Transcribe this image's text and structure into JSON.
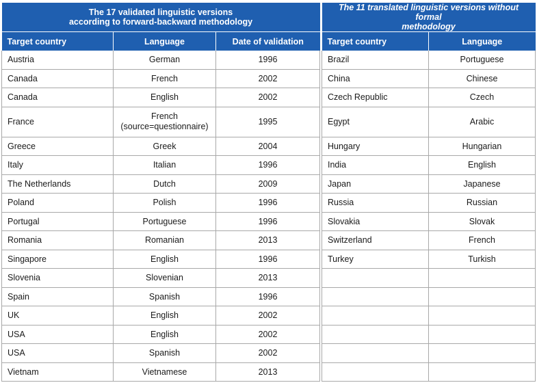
{
  "left_table": {
    "title_line1": "The 17 validated linguistic versions",
    "title_line2": "according to forward-backward methodology",
    "headers": [
      "Target country",
      "Language",
      "Date of validation"
    ],
    "rows": [
      {
        "country": "Austria",
        "language": "German",
        "date": "1996"
      },
      {
        "country": "Canada",
        "language": "French",
        "date": "2002"
      },
      {
        "country": "Canada",
        "language": "English",
        "date": "2002"
      },
      {
        "country": "France",
        "language": "French",
        "language_note": "(source=questionnaire)",
        "date": "1995"
      },
      {
        "country": "Greece",
        "language": "Greek",
        "date": "2004"
      },
      {
        "country": "Italy",
        "language": "Italian",
        "date": "1996"
      },
      {
        "country": "The Netherlands",
        "language": "Dutch",
        "date": "2009"
      },
      {
        "country": "Poland",
        "language": "Polish",
        "date": "1996"
      },
      {
        "country": "Portugal",
        "language": "Portuguese",
        "date": "1996"
      },
      {
        "country": "Romania",
        "language": "Romanian",
        "date": "2013"
      },
      {
        "country": "Singapore",
        "language": "English",
        "date": "1996"
      },
      {
        "country": "Slovenia",
        "language": "Slovenian",
        "date": "2013"
      },
      {
        "country": "Spain",
        "language": "Spanish",
        "date": "1996"
      },
      {
        "country": "UK",
        "language": "English",
        "date": "2002"
      },
      {
        "country": "USA",
        "language": "English",
        "date": "2002"
      },
      {
        "country": "USA",
        "language": "Spanish",
        "date": "2002"
      },
      {
        "country": "Vietnam",
        "language": "Vietnamese",
        "date": "2013"
      }
    ]
  },
  "right_table": {
    "title_line1": "The 11 translated linguistic versions without formal",
    "title_line2": "methodology",
    "headers": [
      "Target country",
      "Language"
    ],
    "rows": [
      {
        "country": "Brazil",
        "language": "Portuguese"
      },
      {
        "country": "China",
        "language": "Chinese"
      },
      {
        "country": "Czech Republic",
        "language": "Czech"
      },
      {
        "country": "Egypt",
        "language": "Arabic"
      },
      {
        "country": "Hungary",
        "language": "Hungarian"
      },
      {
        "country": "India",
        "language": "English"
      },
      {
        "country": "Japan",
        "language": "Japanese"
      },
      {
        "country": "Russia",
        "language": "Russian"
      },
      {
        "country": "Slovakia",
        "language": "Slovak"
      },
      {
        "country": "Switzerland",
        "language": "French"
      },
      {
        "country": "Turkey",
        "language": "Turkish"
      },
      {
        "country": "",
        "language": ""
      },
      {
        "country": "",
        "language": ""
      },
      {
        "country": "",
        "language": ""
      },
      {
        "country": "",
        "language": ""
      },
      {
        "country": "",
        "language": ""
      },
      {
        "country": "",
        "language": ""
      }
    ]
  },
  "colors": {
    "header_blue": "#1f5fb0",
    "header_text": "#ffffff",
    "grid_line": "#a8a8a8"
  }
}
